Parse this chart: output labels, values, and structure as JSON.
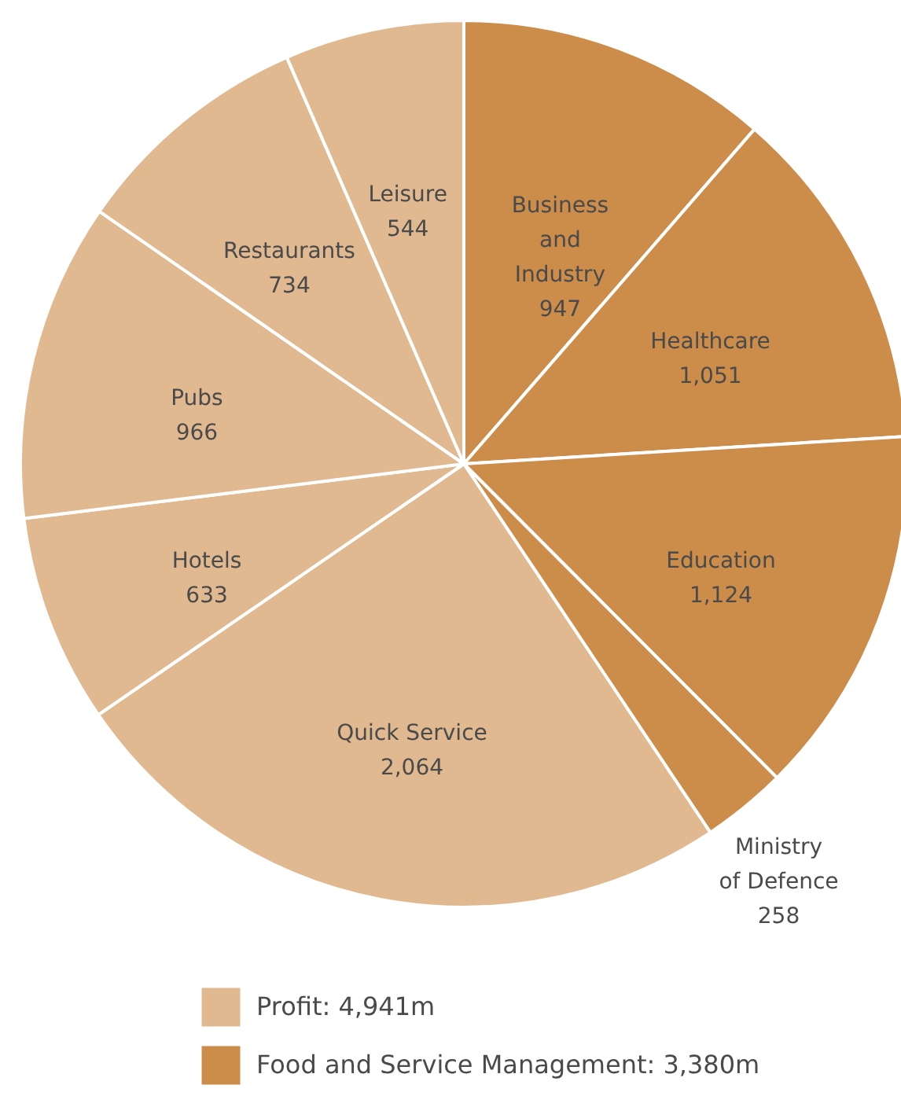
{
  "chart_data": {
    "type": "pie",
    "categories": [
      "Business and Industry",
      "Healthcare",
      "Education",
      "Ministry of Defence",
      "Quick Service",
      "Hotels",
      "Pubs",
      "Restaurants",
      "Leisure"
    ],
    "values": [
      947,
      1051,
      1124,
      258,
      2064,
      633,
      966,
      734,
      544
    ],
    "value_labels": [
      "947",
      "1,051",
      "1,124",
      "258",
      "2,064",
      "633",
      "966",
      "734",
      "544"
    ],
    "colors": [
      "#cc8c4a",
      "#cc8c4a",
      "#cc8c4a",
      "#cc8c4a",
      "#e0b990",
      "#e0b990",
      "#e0b990",
      "#e0b990",
      "#e0b990"
    ],
    "annotations": [
      "Profit: 4,941m",
      "Food and Service Management: 3,380m"
    ]
  }
}
